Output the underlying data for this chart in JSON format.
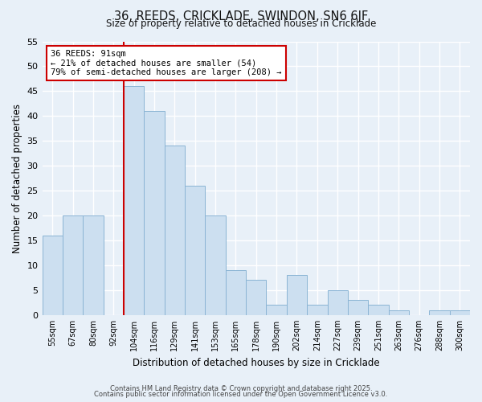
{
  "title": "36, REEDS, CRICKLADE, SWINDON, SN6 6JF",
  "subtitle": "Size of property relative to detached houses in Cricklade",
  "xlabel": "Distribution of detached houses by size in Cricklade",
  "ylabel": "Number of detached properties",
  "bar_labels": [
    "55sqm",
    "67sqm",
    "80sqm",
    "92sqm",
    "104sqm",
    "116sqm",
    "129sqm",
    "141sqm",
    "153sqm",
    "165sqm",
    "178sqm",
    "190sqm",
    "202sqm",
    "214sqm",
    "227sqm",
    "239sqm",
    "251sqm",
    "263sqm",
    "276sqm",
    "288sqm",
    "300sqm"
  ],
  "bar_values": [
    16,
    20,
    20,
    0,
    46,
    41,
    34,
    26,
    20,
    9,
    7,
    2,
    8,
    2,
    5,
    3,
    2,
    1,
    0,
    1,
    1
  ],
  "bar_color": "#ccdff0",
  "bar_edge_color": "#8ab4d4",
  "vline_x_index": 3,
  "vline_color": "#cc0000",
  "annotation_title": "36 REEDS: 91sqm",
  "annotation_line1": "← 21% of detached houses are smaller (54)",
  "annotation_line2": "79% of semi-detached houses are larger (208) →",
  "annotation_box_color": "#ffffff",
  "annotation_box_edge": "#cc0000",
  "ylim": [
    0,
    55
  ],
  "yticks": [
    0,
    5,
    10,
    15,
    20,
    25,
    30,
    35,
    40,
    45,
    50,
    55
  ],
  "footer1": "Contains HM Land Registry data © Crown copyright and database right 2025.",
  "footer2": "Contains public sector information licensed under the Open Government Licence v3.0.",
  "bg_color": "#e8f0f8",
  "grid_color": "#ffffff",
  "figsize": [
    6.0,
    5.0
  ],
  "dpi": 100
}
